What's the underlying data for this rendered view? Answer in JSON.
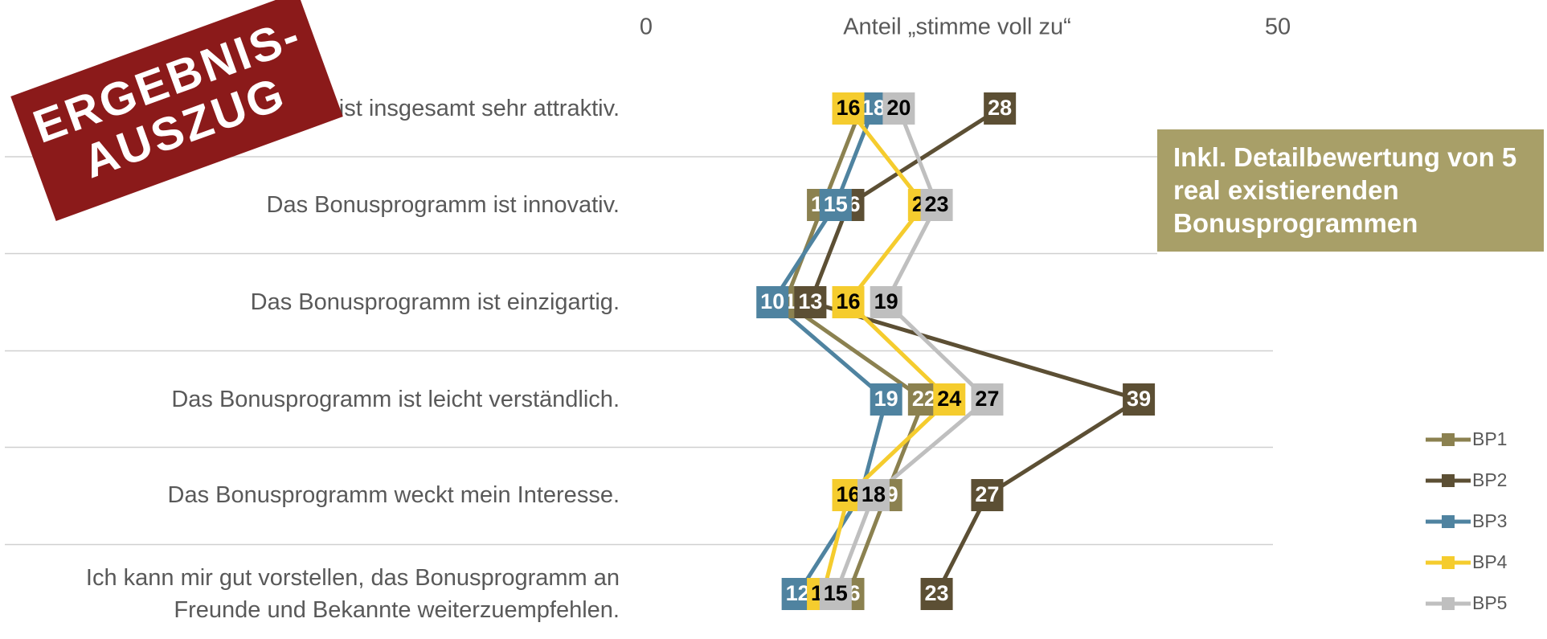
{
  "chart_data": {
    "type": "line",
    "orientation": "horizontal",
    "x_axis_title": "Anteil „stimme voll zu“",
    "categories": [
      "Das Bonusprogramm ist insgesamt sehr attraktiv.",
      "Das Bonusprogramm ist innovativ.",
      "Das Bonusprogramm ist einzigartig.",
      "Das Bonusprogramm ist leicht verständlich.",
      "Das Bonusprogramm weckt mein Interesse.",
      "Ich kann mir gut vorstellen, das Bonusprogramm an Freunde und Bekannte weiterzuempfehlen."
    ],
    "xlim": [
      0,
      50
    ],
    "xticks": [
      0,
      50
    ],
    "series": [
      {
        "name": "BP1",
        "color": "#8b8150",
        "label_color": "#ffffff",
        "values": [
          17,
          14,
          11,
          22,
          19,
          16
        ]
      },
      {
        "name": "BP2",
        "color": "#5c4f34",
        "label_color": "#ffffff",
        "values": [
          28,
          16,
          13,
          39,
          27,
          23
        ]
      },
      {
        "name": "BP3",
        "color": "#4f83a0",
        "label_color": "#ffffff",
        "values": [
          18,
          15,
          10,
          19,
          17,
          12
        ]
      },
      {
        "name": "BP4",
        "color": "#f5cc2e",
        "label_color": "#000000",
        "values": [
          16,
          22,
          16,
          24,
          16,
          14
        ]
      },
      {
        "name": "BP5",
        "color": "#bfbfbf",
        "label_color": "#000000",
        "values": [
          20,
          23,
          19,
          27,
          18,
          15
        ]
      }
    ],
    "legend": "right",
    "annotations": {
      "stamp": [
        "ERGEBNIS-",
        "AUSZUG"
      ],
      "callout": "Inkl. Detailbewertung von 5 real existierenden Bonusprogrammen"
    }
  }
}
